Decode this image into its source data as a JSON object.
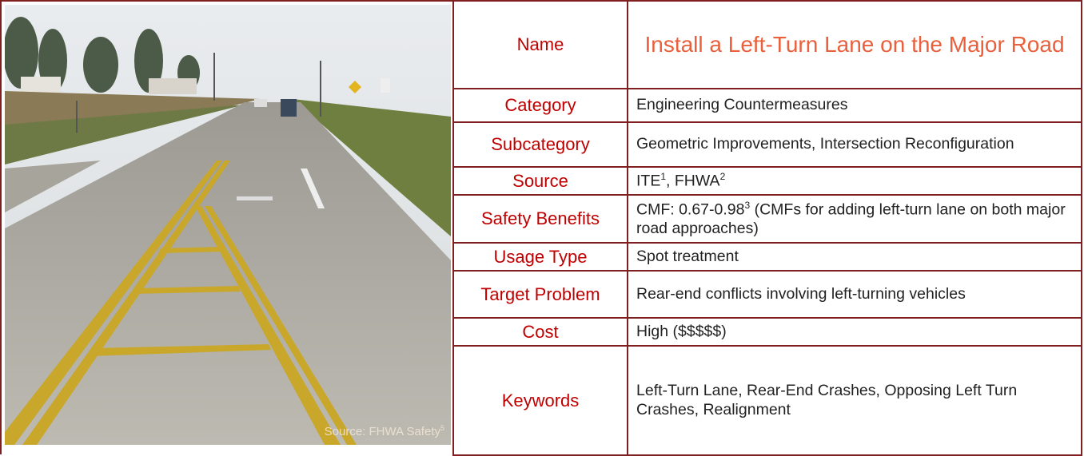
{
  "photo_caption": {
    "text": "Source: FHWA Safety",
    "sup": "5"
  },
  "table": {
    "rows": [
      {
        "label": "Name",
        "value": [
          {
            "text": "Install a Left-Turn Lane on the Major Road"
          }
        ]
      },
      {
        "label": "Category",
        "value": [
          {
            "text": "Engineering Countermeasures"
          }
        ]
      },
      {
        "label": "Subcategory",
        "value": [
          {
            "text": "Geometric Improvements, Intersection Reconfiguration"
          }
        ]
      },
      {
        "label": "Source",
        "value": [
          {
            "text": "ITE",
            "sup": "1"
          },
          {
            "text": ", FHWA",
            "sup": "2"
          }
        ]
      },
      {
        "label": "Safety Benefits",
        "value": [
          {
            "text": "CMF: 0.67-0.98",
            "sup": "3"
          },
          {
            "text": " (CMFs for adding left-turn lane on both major road approaches)"
          }
        ]
      },
      {
        "label": "Usage Type",
        "value": [
          {
            "text": "Spot treatment"
          }
        ]
      },
      {
        "label": "Target Problem",
        "value": [
          {
            "text": "Rear-end conflicts involving left-turning vehicles"
          }
        ]
      },
      {
        "label": "Cost",
        "value": [
          {
            "text": "High ($$$$$)"
          }
        ]
      },
      {
        "label": "Keywords",
        "value": [
          {
            "text": "Left-Turn Lane, Rear-End Crashes, Opposing Left Turn Crashes, Realignment"
          }
        ]
      }
    ]
  }
}
